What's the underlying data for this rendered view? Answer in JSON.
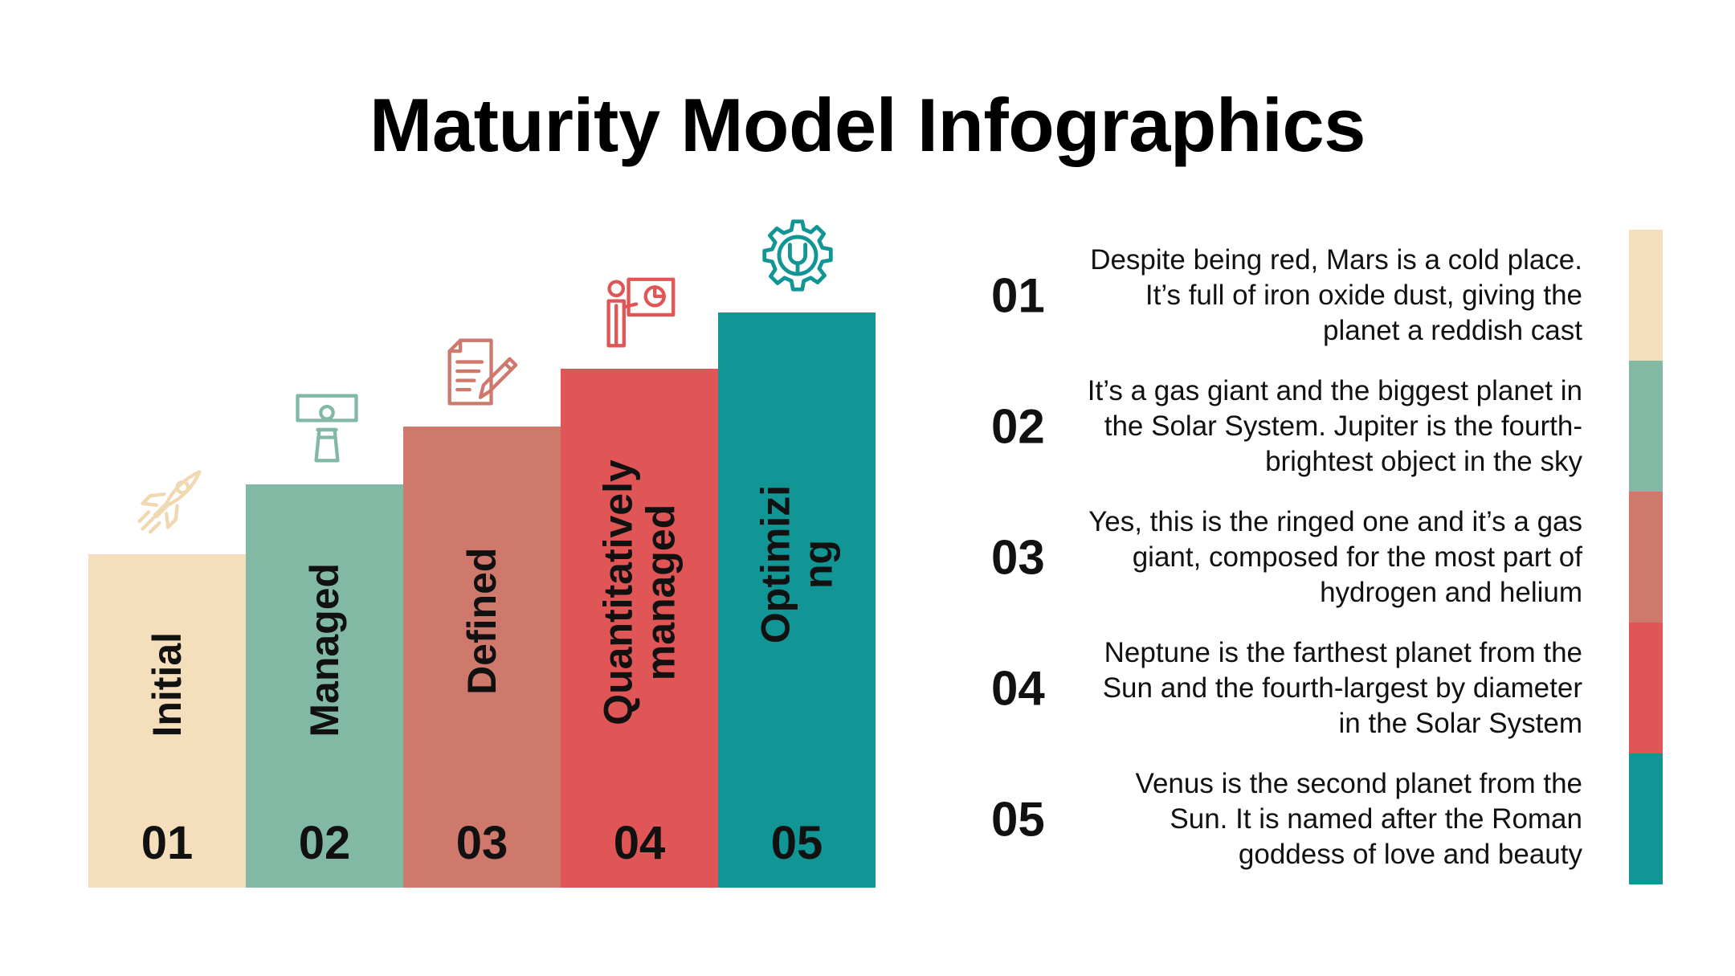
{
  "title": "Maturity Model Infographics",
  "levels": [
    {
      "num": "01",
      "label": "Initial",
      "color": "#F5DEBB",
      "icon": "rocket-icon"
    },
    {
      "num": "02",
      "label": "Managed",
      "color": "#82B9A5",
      "icon": "presentation-person-icon"
    },
    {
      "num": "03",
      "label": "Defined",
      "color": "#CF786C",
      "icon": "document-pen-icon"
    },
    {
      "num": "04",
      "label_line1": "Quantitatively",
      "label_line2": "managed",
      "color": "#E05555",
      "icon": "presenter-chart-icon"
    },
    {
      "num": "05",
      "label_line1": "Optimizi",
      "label_line2": "ng",
      "color": "#119595",
      "icon": "gear-wrench-icon"
    }
  ],
  "items": [
    {
      "num": "01",
      "text": "Despite being red, Mars is a cold place. It’s full of iron oxide dust, giving the planet a reddish cast"
    },
    {
      "num": "02",
      "text": "It’s a gas giant and the biggest planet in the Solar System. Jupiter is the fourth-brightest object in the sky"
    },
    {
      "num": "03",
      "text": "Yes, this is the ringed one and it’s a gas giant, composed for the most part of hydrogen and helium"
    },
    {
      "num": "04",
      "text": "Neptune is the farthest planet from the Sun and the fourth-largest by diameter in the Solar System"
    },
    {
      "num": "05",
      "text": "Venus is the second planet from the Sun. It is named after the Roman goddess of love and beauty"
    }
  ]
}
